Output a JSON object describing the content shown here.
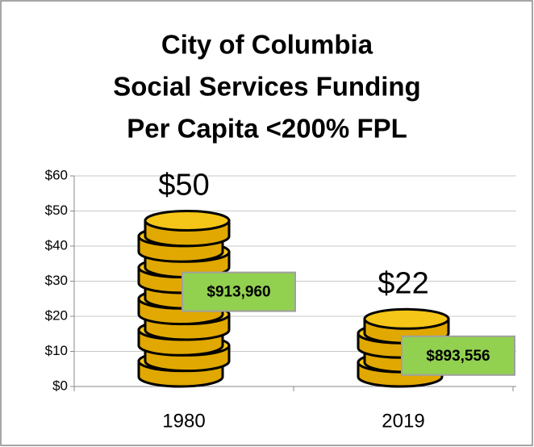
{
  "chart_data": {
    "type": "bar",
    "title": [
      "City of Columbia",
      "Social Services Funding",
      "Per Capita <200% FPL"
    ],
    "categories": [
      "1980",
      "2019"
    ],
    "values": [
      50,
      22
    ],
    "value_labels": [
      "$50",
      "$22"
    ],
    "annotations": [
      "$913,960",
      "$893,556"
    ],
    "color": "#f5c518",
    "ylim": [
      0,
      60
    ],
    "yticks": [
      {
        "value": 0,
        "label": "$0"
      },
      {
        "value": 10,
        "label": "$10"
      },
      {
        "value": 20,
        "label": "$20"
      },
      {
        "value": 30,
        "label": "$30"
      },
      {
        "value": 40,
        "label": "$40"
      },
      {
        "value": 50,
        "label": "$50"
      },
      {
        "value": 60,
        "label": "$60"
      }
    ],
    "grid": true
  }
}
